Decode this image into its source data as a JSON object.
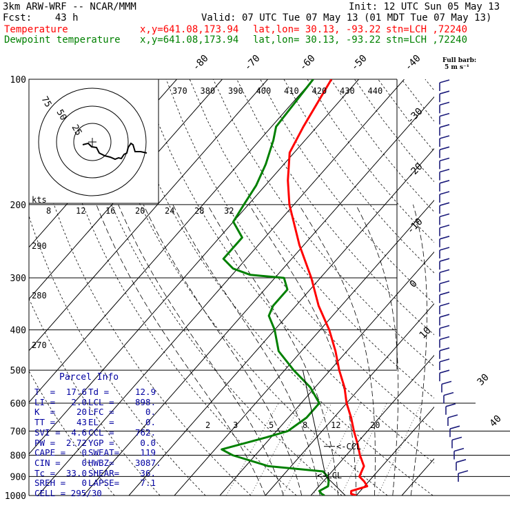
{
  "header": {
    "model": "3km ARW-WRF -- NCAR/MMM",
    "init": "Init: 12 UTC Sun 05 May 13",
    "fcst": "Fcst:    43 h",
    "valid": "Valid: 07 UTC Tue 07 May 13 (01 MDT Tue 07 May 13)",
    "temp_label": "Temperature",
    "dew_label": "Dewpoint temperature",
    "xy": "x,y=641.08,173.94",
    "latlon": "lat,lon= 30.13, -93.22",
    "stn": "stn=LCH ,72240",
    "barb_note1": "Full barb:",
    "barb_note2": "5 m s⁻¹"
  },
  "colors": {
    "temperature": "#ff0000",
    "dewpoint": "#008000",
    "parcel": "#000000",
    "wind": "#1a1a7a",
    "info": "#0000a0"
  },
  "chart_data": {
    "type": "line",
    "subtype": "skew-T log-P sounding",
    "yscale": "log",
    "ylabel": "",
    "ylim": [
      1000,
      100
    ],
    "pressure_ticks": [
      100,
      200,
      300,
      400,
      500,
      600,
      700,
      800,
      900,
      1000
    ],
    "pressure_tick_labels": [
      "100",
      "200",
      "300",
      "400",
      "500",
      "600",
      "700",
      "800",
      "900",
      "1000"
    ],
    "isotherm_labels": [
      "-80",
      "-70",
      "-60",
      "-50",
      "-40",
      "-30",
      "-20",
      "-10",
      "0",
      "10",
      "30",
      "40"
    ],
    "theta_labels": [
      "370",
      "380",
      "390",
      "400",
      "410",
      "420",
      "430",
      "440"
    ],
    "thetae_labels": [
      "290",
      "280",
      "270"
    ],
    "hodo_speed_labels": [
      "8",
      "12",
      "16",
      "20",
      "24",
      "28",
      "32"
    ],
    "mixing_ratio_labels": [
      "2",
      "3",
      "5",
      "8",
      "12",
      "20"
    ],
    "hodo_ring_labels": [
      "75",
      "50",
      "25"
    ],
    "hodo_unit": "kts",
    "ccl_label": "<-CCL",
    "lcl_label": "<-LCL",
    "series": [
      {
        "name": "Temperature",
        "points": [
          [
            1000,
            20
          ],
          [
            990,
            18.5
          ],
          [
            975,
            18
          ],
          [
            950,
            20.6
          ],
          [
            925,
            19
          ],
          [
            900,
            17
          ],
          [
            875,
            16.5
          ],
          [
            850,
            16
          ],
          [
            800,
            13
          ],
          [
            750,
            10.2
          ],
          [
            700,
            7
          ],
          [
            650,
            3.8
          ],
          [
            600,
            0
          ],
          [
            550,
            -3.5
          ],
          [
            500,
            -8
          ],
          [
            450,
            -12.5
          ],
          [
            400,
            -18
          ],
          [
            350,
            -25
          ],
          [
            300,
            -32
          ],
          [
            250,
            -41
          ],
          [
            200,
            -51
          ],
          [
            175,
            -56
          ],
          [
            150,
            -61
          ],
          [
            130,
            -63
          ],
          [
            100,
            -66
          ]
        ]
      },
      {
        "name": "Dewpoint temperature",
        "points": [
          [
            1000,
            13
          ],
          [
            990,
            12
          ],
          [
            975,
            11
          ],
          [
            950,
            12
          ],
          [
            925,
            11.2
          ],
          [
            900,
            10
          ],
          [
            875,
            8
          ],
          [
            850,
            -5
          ],
          [
            800,
            -15
          ],
          [
            775,
            -18.5
          ],
          [
            725,
            -11
          ],
          [
            700,
            -7.5
          ],
          [
            650,
            -6
          ],
          [
            600,
            -6
          ],
          [
            550,
            -11
          ],
          [
            500,
            -18
          ],
          [
            450,
            -25
          ],
          [
            400,
            -30
          ],
          [
            370,
            -34
          ],
          [
            350,
            -35
          ],
          [
            320,
            -35
          ],
          [
            300,
            -38
          ],
          [
            295,
            -46
          ],
          [
            285,
            -51
          ],
          [
            270,
            -55
          ],
          [
            240,
            -55
          ],
          [
            220,
            -60
          ],
          [
            200,
            -61
          ],
          [
            180,
            -62
          ],
          [
            160,
            -64
          ],
          [
            140,
            -67
          ],
          [
            130,
            -69
          ],
          [
            100,
            -70
          ]
        ]
      }
    ],
    "parcel_info": {
      "title": "Parcel Info",
      "rows": [
        [
          "T  =",
          "17.6",
          "Td =",
          "12.9"
        ],
        [
          "LI =",
          "2.0",
          "LCL =",
          "898."
        ],
        [
          "K  =",
          "20",
          "LFC =",
          "0."
        ],
        [
          "TT =",
          "43",
          "EL  =",
          "0."
        ],
        [
          "SVI =",
          "4.6",
          "CCL =",
          "762."
        ],
        [
          "PW =",
          "2.72",
          "YGP =",
          "0.0"
        ],
        [
          "CAPE =",
          "0",
          "SWEAT=",
          "119"
        ],
        [
          "CIN =",
          "0",
          "HWBZ=",
          "3087."
        ],
        [
          "Tc =",
          "33.0",
          "SHEAR=",
          "36."
        ],
        [
          "SREH =",
          "0",
          "LAPSE=",
          "7.1"
        ]
      ],
      "cell": "CELL = 295/30"
    }
  }
}
